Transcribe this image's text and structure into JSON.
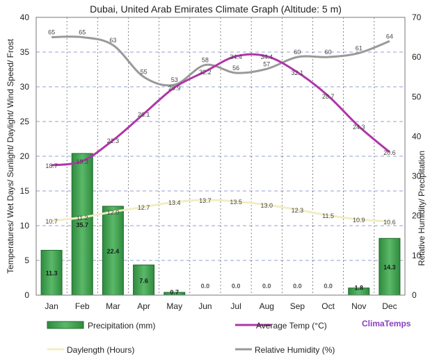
{
  "chart_data": {
    "type": "bar",
    "title": "Dubai, United Arab Emirates Climate Graph (Altitude: 5 m)",
    "ylabel_left": "Temperatures/ Wet Days/ Sunlight/ Daylight/ Wind Speed/ Frost",
    "ylabel_right": "Relative Humidity/ Precipitation",
    "ylim_left": [
      0,
      40
    ],
    "ylim_right": [
      0,
      70
    ],
    "yticks_left": [
      0,
      5,
      10,
      15,
      20,
      25,
      30,
      35,
      40
    ],
    "yticks_right": [
      0,
      10,
      20,
      30,
      40,
      50,
      60,
      70
    ],
    "categories": [
      "Jan",
      "Feb",
      "Mar",
      "Apr",
      "May",
      "Jun",
      "Jul",
      "Aug",
      "Sep",
      "Oct",
      "Nov",
      "Dec"
    ],
    "grid": true,
    "watermark": "ClimaTemps",
    "series": [
      {
        "name": "Precipitation (mm)",
        "type": "bar",
        "axis": "right",
        "color": "#3a9a4a",
        "values": [
          11.3,
          35.7,
          22.4,
          7.6,
          0.7,
          0.0,
          0.0,
          0.0,
          0.0,
          0.0,
          1.8,
          14.3
        ],
        "labels": [
          "11.3",
          "35.7",
          "22.4",
          "7.6",
          "0.7",
          "0.0",
          "0.0",
          "0.0",
          "0.0",
          "0.0",
          "1.8",
          "14.3"
        ]
      },
      {
        "name": "Average Temp (°C)",
        "type": "line",
        "axis": "left",
        "color": "#b035a8",
        "values": [
          18.7,
          19.3,
          22.3,
          26.1,
          29.9,
          32.2,
          34.4,
          34.4,
          32.1,
          28.7,
          24.3,
          20.6
        ],
        "labels": [
          "18.7",
          "19.3",
          "22.3",
          "26.1",
          "29.9",
          "32.2",
          "34.4",
          "34.4",
          "32.1",
          "28.7",
          "24.3",
          "20.6"
        ]
      },
      {
        "name": "Daylength (Hours)",
        "type": "line",
        "axis": "left",
        "color": "#f2edc4",
        "values": [
          10.7,
          11.2,
          12.0,
          12.7,
          13.4,
          13.7,
          13.5,
          13.0,
          12.3,
          11.5,
          10.9,
          10.6
        ],
        "labels": [
          "10.7",
          "11.2",
          "12.0",
          "12.7",
          "13.4",
          "13.7",
          "13.5",
          "13.0",
          "12.3",
          "11.5",
          "10.9",
          "10.6"
        ]
      },
      {
        "name": "Relative Humidity (%)",
        "type": "line",
        "axis": "right",
        "color": "#999999",
        "values": [
          65,
          65,
          63,
          55,
          53,
          58,
          56,
          57,
          60,
          60,
          61,
          64
        ],
        "labels": [
          "65",
          "65",
          "63",
          "55",
          "53",
          "58",
          "56",
          "57",
          "60",
          "60",
          "61",
          "64"
        ]
      }
    ]
  }
}
